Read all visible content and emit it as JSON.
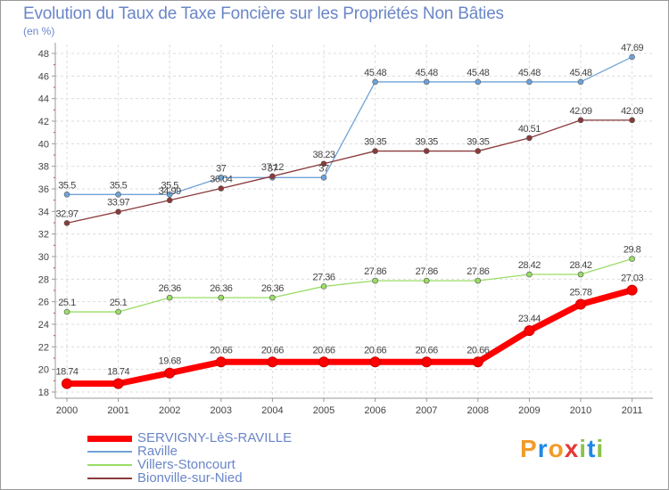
{
  "title": "Evolution du Taux de Taxe Foncière sur les Propriétés Non Bâties",
  "unit": "(en %)",
  "logo": {
    "letters": [
      "P",
      "r",
      "o",
      "x",
      "i",
      "t",
      "i"
    ],
    "colors": [
      "#f29b28",
      "#1e88e5",
      "#f29b28",
      "#e53935",
      "#8bc34a",
      "#1e88e5",
      "#8bc34a"
    ]
  },
  "chart_data": {
    "type": "line",
    "title": "Evolution du Taux de Taxe Foncière sur les Propriétés Non Bâties",
    "ylabel": "(en %)",
    "x": [
      "2000",
      "2001",
      "2002",
      "2003",
      "2004",
      "2005",
      "2006",
      "2007",
      "2008",
      "2009",
      "2010",
      "2011"
    ],
    "ylim": [
      18,
      48
    ],
    "yticks": [
      18,
      20,
      22,
      24,
      26,
      28,
      30,
      32,
      34,
      36,
      38,
      40,
      42,
      44,
      46,
      48
    ],
    "grid": true,
    "legend_position": "bottom-left",
    "series": [
      {
        "name": "SERVIGNY-LèS-RAVILLE",
        "color": "#ff0000",
        "values": [
          18.74,
          18.74,
          19.68,
          20.66,
          20.66,
          20.66,
          20.66,
          20.66,
          20.66,
          23.44,
          25.78,
          27.03
        ],
        "labels": [
          "18.74",
          "18.74",
          "19.68",
          "20.66",
          "20.66",
          "20.66",
          "20.66",
          "20.66",
          "20.66",
          "23.44",
          "25.78",
          "27.03"
        ]
      },
      {
        "name": "Raville",
        "color": "#6fa3d8",
        "values": [
          35.5,
          35.5,
          35.5,
          37,
          37,
          37,
          45.48,
          45.48,
          45.48,
          45.48,
          45.48,
          47.69
        ],
        "labels": [
          "35.5",
          "35.5",
          "35.5",
          "37",
          "37",
          "37",
          "45.48",
          "45.48",
          "45.48",
          "45.48",
          "45.48",
          "47.69"
        ]
      },
      {
        "name": "Villers-Stoncourt",
        "color": "#99dd66",
        "values": [
          25.1,
          25.1,
          26.36,
          26.36,
          26.36,
          27.36,
          27.86,
          27.86,
          27.86,
          28.42,
          28.42,
          29.8
        ],
        "labels": [
          "25.1",
          "25.1",
          "26.36",
          "26.36",
          "26.36",
          "27.36",
          "27.86",
          "27.86",
          "27.86",
          "28.42",
          "28.42",
          "29.8"
        ]
      },
      {
        "name": "Bionville-sur-Nied",
        "color": "#8b3a3a",
        "values": [
          32.97,
          33.97,
          34.99,
          36.04,
          37.12,
          38.23,
          39.35,
          39.35,
          39.35,
          40.51,
          42.09,
          42.09
        ],
        "labels": [
          "32.97",
          "33.97",
          "34.99",
          "36.04",
          "37.12",
          "38.23",
          "39.35",
          "39.35",
          "39.35",
          "40.51",
          "42.09",
          "42.09"
        ]
      }
    ]
  }
}
